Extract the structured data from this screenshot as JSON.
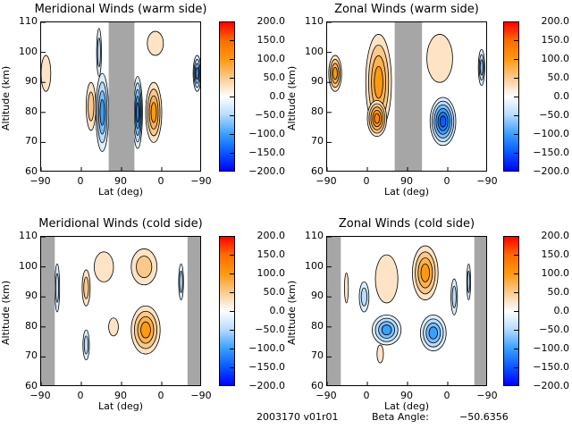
{
  "chart_data": [
    {
      "type": "heatmap",
      "title": "Meridional Winds (warm side)",
      "xlabel": "Lat (deg)",
      "ylabel": "Altitude (km)",
      "xticks": [
        "-90",
        "0",
        "90",
        "0",
        "-90"
      ],
      "yticks": [
        "60",
        "70",
        "80",
        "90",
        "100",
        "110"
      ],
      "ylim": [
        60,
        110
      ],
      "masked_bands": [
        [
          0.42,
          0.58
        ]
      ],
      "blobs": [
        {
          "x": 0.03,
          "y": 93,
          "w": 0.03,
          "h": 6,
          "v": 30
        },
        {
          "x": 0.31,
          "y": 82,
          "w": 0.03,
          "h": 8,
          "v": 40
        },
        {
          "x": 0.38,
          "y": 80,
          "w": 0.04,
          "h": 13,
          "v": -90
        },
        {
          "x": 0.36,
          "y": 100,
          "w": 0.015,
          "h": 8,
          "v": -40
        },
        {
          "x": 0.6,
          "y": 80,
          "w": 0.03,
          "h": 12,
          "v": -120
        },
        {
          "x": 0.7,
          "y": 80,
          "w": 0.05,
          "h": 10,
          "v": 90
        },
        {
          "x": 0.71,
          "y": 103,
          "w": 0.05,
          "h": 4,
          "v": 30
        },
        {
          "x": 0.97,
          "y": 93,
          "w": 0.025,
          "h": 6,
          "v": -90
        }
      ]
    },
    {
      "type": "heatmap",
      "title": "Zonal Winds (warm side)",
      "xlabel": "Lat (deg)",
      "ylabel": "Altitude (km)",
      "xticks": [
        "-90",
        "0",
        "90",
        "0",
        "-90"
      ],
      "yticks": [
        "60",
        "70",
        "80",
        "90",
        "100",
        "110"
      ],
      "ylim": [
        60,
        110
      ],
      "masked_bands": [
        [
          0.42,
          0.59
        ]
      ],
      "blobs": [
        {
          "x": 0.05,
          "y": 93,
          "w": 0.04,
          "h": 6,
          "v": 100
        },
        {
          "x": 0.32,
          "y": 90,
          "w": 0.08,
          "h": 16,
          "v": 90
        },
        {
          "x": 0.31,
          "y": 78,
          "w": 0.06,
          "h": 6,
          "v": 120
        },
        {
          "x": 0.7,
          "y": 98,
          "w": 0.08,
          "h": 8,
          "v": 35
        },
        {
          "x": 0.72,
          "y": 77,
          "w": 0.08,
          "h": 8,
          "v": -160
        },
        {
          "x": 0.96,
          "y": 95,
          "w": 0.02,
          "h": 6,
          "v": -70
        }
      ]
    },
    {
      "type": "heatmap",
      "title": "Meridional Winds (cold side)",
      "xlabel": "Lat (deg)",
      "ylabel": "Altitude (km)",
      "xticks": [
        "-90",
        "0",
        "90",
        "0",
        "-90"
      ],
      "yticks": [
        "60",
        "70",
        "80",
        "90",
        "100",
        "110"
      ],
      "ylim": [
        60,
        110
      ],
      "masked_bands": [
        [
          0.0,
          0.085
        ],
        [
          0.91,
          1.0
        ]
      ],
      "blobs": [
        {
          "x": 0.1,
          "y": 93,
          "w": 0.015,
          "h": 8,
          "v": -40
        },
        {
          "x": 0.28,
          "y": 93,
          "w": 0.025,
          "h": 6,
          "v": 50
        },
        {
          "x": 0.39,
          "y": 100,
          "w": 0.06,
          "h": 5,
          "v": 25
        },
        {
          "x": 0.28,
          "y": 74,
          "w": 0.02,
          "h": 5,
          "v": -40
        },
        {
          "x": 0.45,
          "y": 80,
          "w": 0.03,
          "h": 3,
          "v": 30
        },
        {
          "x": 0.64,
          "y": 100,
          "w": 0.08,
          "h": 6,
          "v": 50
        },
        {
          "x": 0.65,
          "y": 79,
          "w": 0.09,
          "h": 8,
          "v": 110
        },
        {
          "x": 0.87,
          "y": 95,
          "w": 0.015,
          "h": 6,
          "v": -60
        }
      ]
    },
    {
      "type": "heatmap",
      "title": "Zonal Winds (cold side)",
      "xlabel": "Lat (deg)",
      "ylabel": "Altitude (km)",
      "xticks": [
        "-90",
        "0",
        "90",
        "0",
        "-90"
      ],
      "yticks": [
        "60",
        "70",
        "80",
        "90",
        "100",
        "110"
      ],
      "ylim": [
        60,
        110
      ],
      "masked_bands": [
        [
          0.0,
          0.085
        ],
        [
          0.915,
          1.0
        ]
      ],
      "blobs": [
        {
          "x": 0.37,
          "y": 96,
          "w": 0.07,
          "h": 8,
          "v": 30
        },
        {
          "x": 0.37,
          "y": 79,
          "w": 0.09,
          "h": 5,
          "v": -110
        },
        {
          "x": 0.33,
          "y": 71,
          "w": 0.02,
          "h": 3,
          "v": 30
        },
        {
          "x": 0.23,
          "y": 90,
          "w": 0.03,
          "h": 5,
          "v": -40
        },
        {
          "x": 0.61,
          "y": 98,
          "w": 0.08,
          "h": 9,
          "v": 100
        },
        {
          "x": 0.66,
          "y": 78,
          "w": 0.08,
          "h": 6,
          "v": -110
        },
        {
          "x": 0.79,
          "y": 90,
          "w": 0.02,
          "h": 6,
          "v": -40
        },
        {
          "x": 0.12,
          "y": 93,
          "w": 0.012,
          "h": 5,
          "v": 30
        },
        {
          "x": 0.88,
          "y": 95,
          "w": 0.012,
          "h": 6,
          "v": -40
        }
      ]
    }
  ],
  "colorbar": {
    "ticks": [
      "200.0",
      "150.0",
      "100.0",
      "50.0",
      "0.0",
      "-50.0",
      "-100.0",
      "-150.0",
      "-200.0"
    ],
    "range": [
      -200,
      200
    ]
  },
  "footer": {
    "id": "2003170 v01r01",
    "beta_label": "Beta Angle:",
    "beta_value": "-50.6356"
  }
}
